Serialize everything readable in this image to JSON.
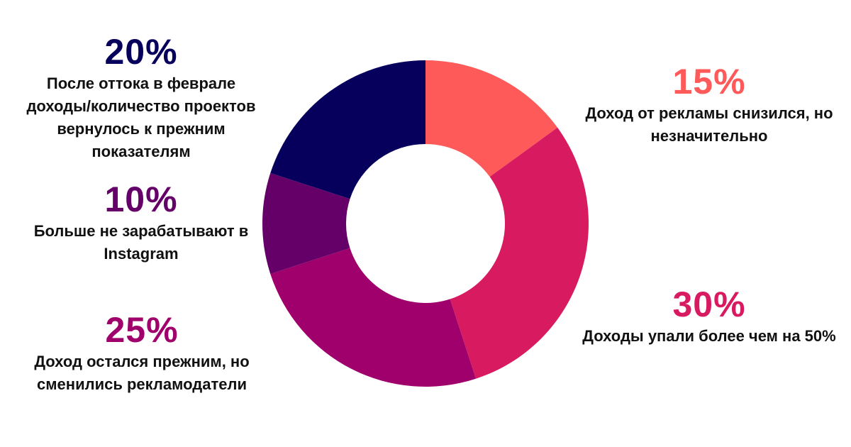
{
  "chart_data": {
    "type": "pie",
    "variant": "donut",
    "slices": [
      {
        "key": "s15",
        "value": 15,
        "label": "15%",
        "description": "Доход от рекламы снизился, но незначительно",
        "color": "#FF5A5A"
      },
      {
        "key": "s30",
        "value": 30,
        "label": "30%",
        "description": "Доходы упали более чем на 50%",
        "color": "#D81B60"
      },
      {
        "key": "s25",
        "value": 25,
        "label": "25%",
        "description": "Доход остался прежним, но сменились рекламодатели",
        "color": "#A0006B"
      },
      {
        "key": "s10",
        "value": 10,
        "label": "10%",
        "description": "Больше не зарабатывают в Instagram",
        "color": "#650069"
      },
      {
        "key": "s20",
        "value": 20,
        "label": "20%",
        "description": "После оттока в феврале доходы/количество проектов вернулось к прежним показателям",
        "color": "#06005C"
      }
    ],
    "start": "top",
    "direction": "clockwise",
    "legend": "none"
  }
}
